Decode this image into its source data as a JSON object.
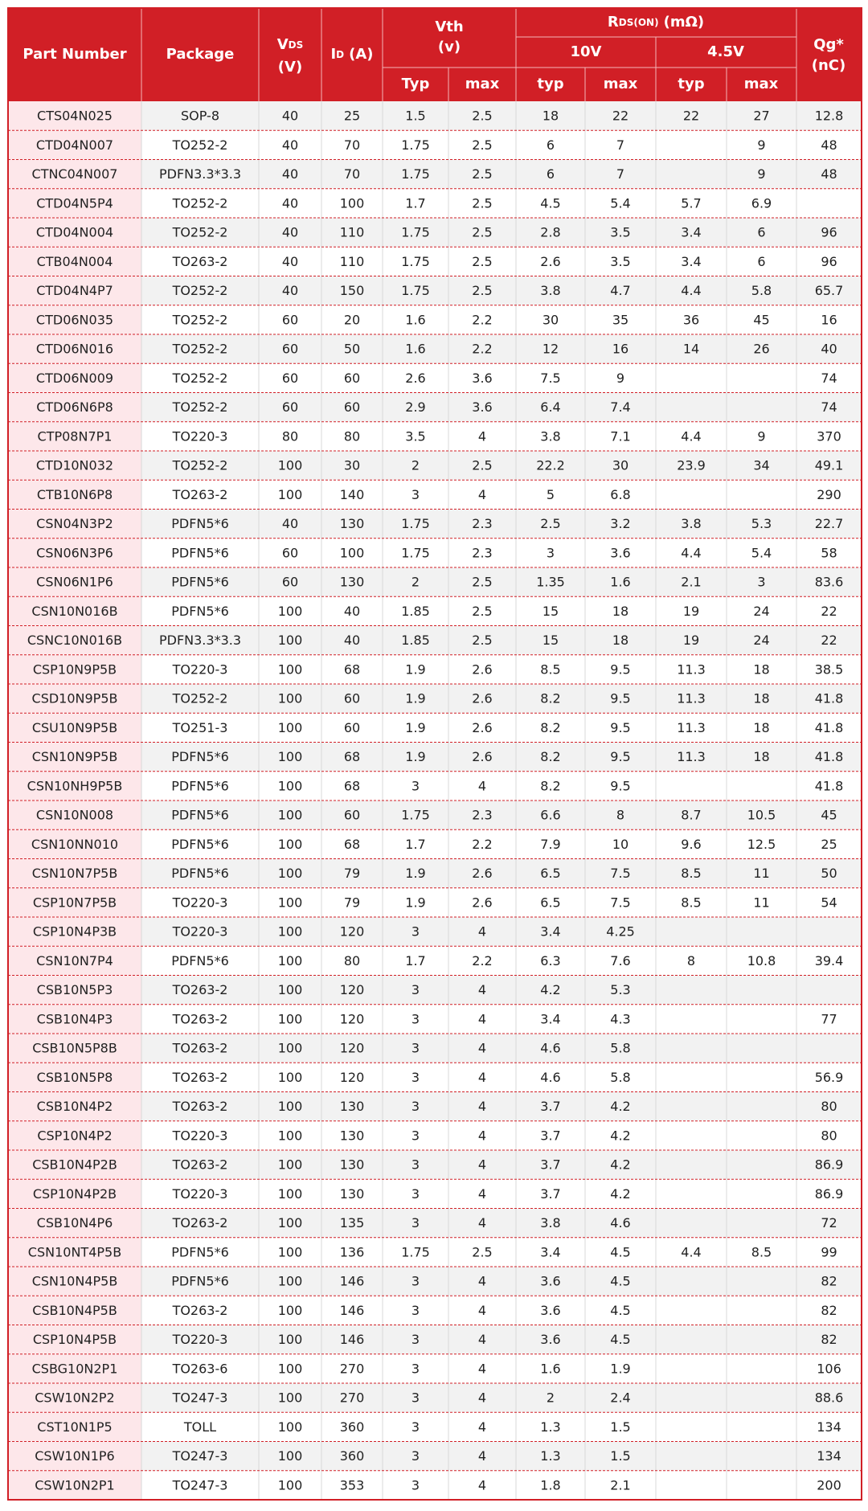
{
  "header": {
    "part_number": "Part Number",
    "package": "Package",
    "vds": {
      "symbol": "V",
      "sub": "DS",
      "unit": "(V)"
    },
    "id": {
      "symbol": "I",
      "sub": "D",
      "unit": "(A)"
    },
    "vth": {
      "title": "Vth",
      "unit": "(v)",
      "typ": "Typ",
      "max": "max"
    },
    "rds_on": {
      "symbol": "R",
      "sub": "DS(ON)",
      "unit": "(mΩ)",
      "v10": {
        "label": "10V",
        "typ": "typ",
        "max": "max"
      },
      "v4_5": {
        "label": "4.5V",
        "typ": "typ",
        "max": "max"
      }
    },
    "qg": {
      "title": "Qg*",
      "unit": "(nC)"
    }
  },
  "table": {
    "rows": [
      [
        "CTS04N025",
        "SOP-8",
        40,
        25,
        1.5,
        2.5,
        18,
        22,
        22,
        27,
        12.8
      ],
      [
        "CTD04N007",
        "TO252-2",
        40,
        70,
        1.75,
        2.5,
        6,
        7,
        null,
        9,
        48
      ],
      [
        "CTNC04N007",
        "PDFN3.3*3.3",
        40,
        70,
        1.75,
        2.5,
        6,
        7,
        null,
        9,
        48
      ],
      [
        "CTD04N5P4",
        "TO252-2",
        40,
        100,
        1.7,
        2.5,
        4.5,
        5.4,
        5.7,
        6.9,
        null
      ],
      [
        "CTD04N004",
        "TO252-2",
        40,
        110,
        1.75,
        2.5,
        2.8,
        3.5,
        3.4,
        6,
        96
      ],
      [
        "CTB04N004",
        "TO263-2",
        40,
        110,
        1.75,
        2.5,
        2.6,
        3.5,
        3.4,
        6,
        96
      ],
      [
        "CTD04N4P7",
        "TO252-2",
        40,
        150,
        1.75,
        2.5,
        3.8,
        4.7,
        4.4,
        5.8,
        65.7
      ],
      [
        "CTD06N035",
        "TO252-2",
        60,
        20,
        1.6,
        2.2,
        30,
        35,
        36,
        45,
        16
      ],
      [
        "CTD06N016",
        "TO252-2",
        60,
        50,
        1.6,
        2.2,
        12,
        16,
        14,
        26,
        40
      ],
      [
        "CTD06N009",
        "TO252-2",
        60,
        60,
        2.6,
        3.6,
        7.5,
        9,
        null,
        null,
        74
      ],
      [
        "CTD06N6P8",
        "TO252-2",
        60,
        60,
        2.9,
        3.6,
        6.4,
        7.4,
        null,
        null,
        74
      ],
      [
        "CTP08N7P1",
        "TO220-3",
        80,
        80,
        3.5,
        4,
        3.8,
        7.1,
        4.4,
        9,
        370
      ],
      [
        "CTD10N032",
        "TO252-2",
        100,
        30,
        2,
        2.5,
        22.2,
        30,
        23.9,
        34,
        49.1
      ],
      [
        "CTB10N6P8",
        "TO263-2",
        100,
        140,
        3,
        4,
        5,
        6.8,
        null,
        null,
        290
      ],
      [
        "CSN04N3P2",
        "PDFN5*6",
        40,
        130,
        1.75,
        2.3,
        2.5,
        3.2,
        3.8,
        5.3,
        22.7
      ],
      [
        "CSN06N3P6",
        "PDFN5*6",
        60,
        100,
        1.75,
        2.3,
        3,
        3.6,
        4.4,
        5.4,
        58
      ],
      [
        "CSN06N1P6",
        "PDFN5*6",
        60,
        130,
        2,
        2.5,
        1.35,
        1.6,
        2.1,
        3,
        83.6
      ],
      [
        "CSN10N016B",
        "PDFN5*6",
        100,
        40,
        1.85,
        2.5,
        15,
        18,
        19,
        24,
        22
      ],
      [
        "CSNC10N016B",
        "PDFN3.3*3.3",
        100,
        40,
        1.85,
        2.5,
        15,
        18,
        19,
        24,
        22
      ],
      [
        "CSP10N9P5B",
        "TO220-3",
        100,
        68,
        1.9,
        2.6,
        8.5,
        9.5,
        11.3,
        18,
        38.5
      ],
      [
        "CSD10N9P5B",
        "TO252-2",
        100,
        60,
        1.9,
        2.6,
        8.2,
        9.5,
        11.3,
        18,
        41.8
      ],
      [
        "CSU10N9P5B",
        "TO251-3",
        100,
        60,
        1.9,
        2.6,
        8.2,
        9.5,
        11.3,
        18,
        41.8
      ],
      [
        "CSN10N9P5B",
        "PDFN5*6",
        100,
        68,
        1.9,
        2.6,
        8.2,
        9.5,
        11.3,
        18,
        41.8
      ],
      [
        "CSN10NH9P5B",
        "PDFN5*6",
        100,
        68,
        3,
        4,
        8.2,
        9.5,
        null,
        null,
        41.8
      ],
      [
        "CSN10N008",
        "PDFN5*6",
        100,
        60,
        1.75,
        2.3,
        6.6,
        8,
        8.7,
        10.5,
        45
      ],
      [
        "CSN10NN010",
        "PDFN5*6",
        100,
        68,
        1.7,
        2.2,
        7.9,
        10,
        9.6,
        12.5,
        25
      ],
      [
        "CSN10N7P5B",
        "PDFN5*6",
        100,
        79,
        1.9,
        2.6,
        6.5,
        7.5,
        8.5,
        11,
        50
      ],
      [
        "CSP10N7P5B",
        "TO220-3",
        100,
        79,
        1.9,
        2.6,
        6.5,
        7.5,
        8.5,
        11,
        54
      ],
      [
        "CSP10N4P3B",
        "TO220-3",
        100,
        120,
        3,
        4,
        3.4,
        4.25,
        null,
        null,
        null
      ],
      [
        "CSN10N7P4",
        "PDFN5*6",
        100,
        80,
        1.7,
        2.2,
        6.3,
        7.6,
        8,
        10.8,
        39.4
      ],
      [
        "CSB10N5P3",
        "TO263-2",
        100,
        120,
        3,
        4,
        4.2,
        5.3,
        null,
        null,
        null
      ],
      [
        "CSB10N4P3",
        "TO263-2",
        100,
        120,
        3,
        4,
        3.4,
        4.3,
        null,
        null,
        77
      ],
      [
        "CSB10N5P8B",
        "TO263-2",
        100,
        120,
        3,
        4,
        4.6,
        5.8,
        null,
        null,
        null
      ],
      [
        "CSB10N5P8",
        "TO263-2",
        100,
        120,
        3,
        4,
        4.6,
        5.8,
        null,
        null,
        56.9
      ],
      [
        "CSB10N4P2",
        "TO263-2",
        100,
        130,
        3,
        4,
        3.7,
        4.2,
        null,
        null,
        80
      ],
      [
        "CSP10N4P2",
        "TO220-3",
        100,
        130,
        3,
        4,
        3.7,
        4.2,
        null,
        null,
        80
      ],
      [
        "CSB10N4P2B",
        "TO263-2",
        100,
        130,
        3,
        4,
        3.7,
        4.2,
        null,
        null,
        86.9
      ],
      [
        "CSP10N4P2B",
        "TO220-3",
        100,
        130,
        3,
        4,
        3.7,
        4.2,
        null,
        null,
        86.9
      ],
      [
        "CSB10N4P6",
        "TO263-2",
        100,
        135,
        3,
        4,
        3.8,
        4.6,
        null,
        null,
        72
      ],
      [
        "CSN10NT4P5B",
        "PDFN5*6",
        100,
        136,
        1.75,
        2.5,
        3.4,
        4.5,
        4.4,
        8.5,
        99
      ],
      [
        "CSN10N4P5B",
        "PDFN5*6",
        100,
        146,
        3,
        4,
        3.6,
        4.5,
        null,
        null,
        82
      ],
      [
        "CSB10N4P5B",
        "TO263-2",
        100,
        146,
        3,
        4,
        3.6,
        4.5,
        null,
        null,
        82
      ],
      [
        "CSP10N4P5B",
        "TO220-3",
        100,
        146,
        3,
        4,
        3.6,
        4.5,
        null,
        null,
        82
      ],
      [
        "CSBG10N2P1",
        "TO263-6",
        100,
        270,
        3,
        4,
        1.6,
        1.9,
        null,
        null,
        106
      ],
      [
        "CSW10N2P2",
        "TO247-3",
        100,
        270,
        3,
        4,
        2,
        2.4,
        null,
        null,
        88.6
      ],
      [
        "CST10N1P5",
        "TOLL",
        100,
        360,
        3,
        4,
        1.3,
        1.5,
        null,
        null,
        134
      ],
      [
        "CSW10N1P6",
        "TO247-3",
        100,
        360,
        3,
        4,
        1.3,
        1.5,
        null,
        null,
        134
      ],
      [
        "CSW10N2P1",
        "TO247-3",
        100,
        353,
        3,
        4,
        1.8,
        2.1,
        null,
        null,
        200
      ]
    ]
  }
}
